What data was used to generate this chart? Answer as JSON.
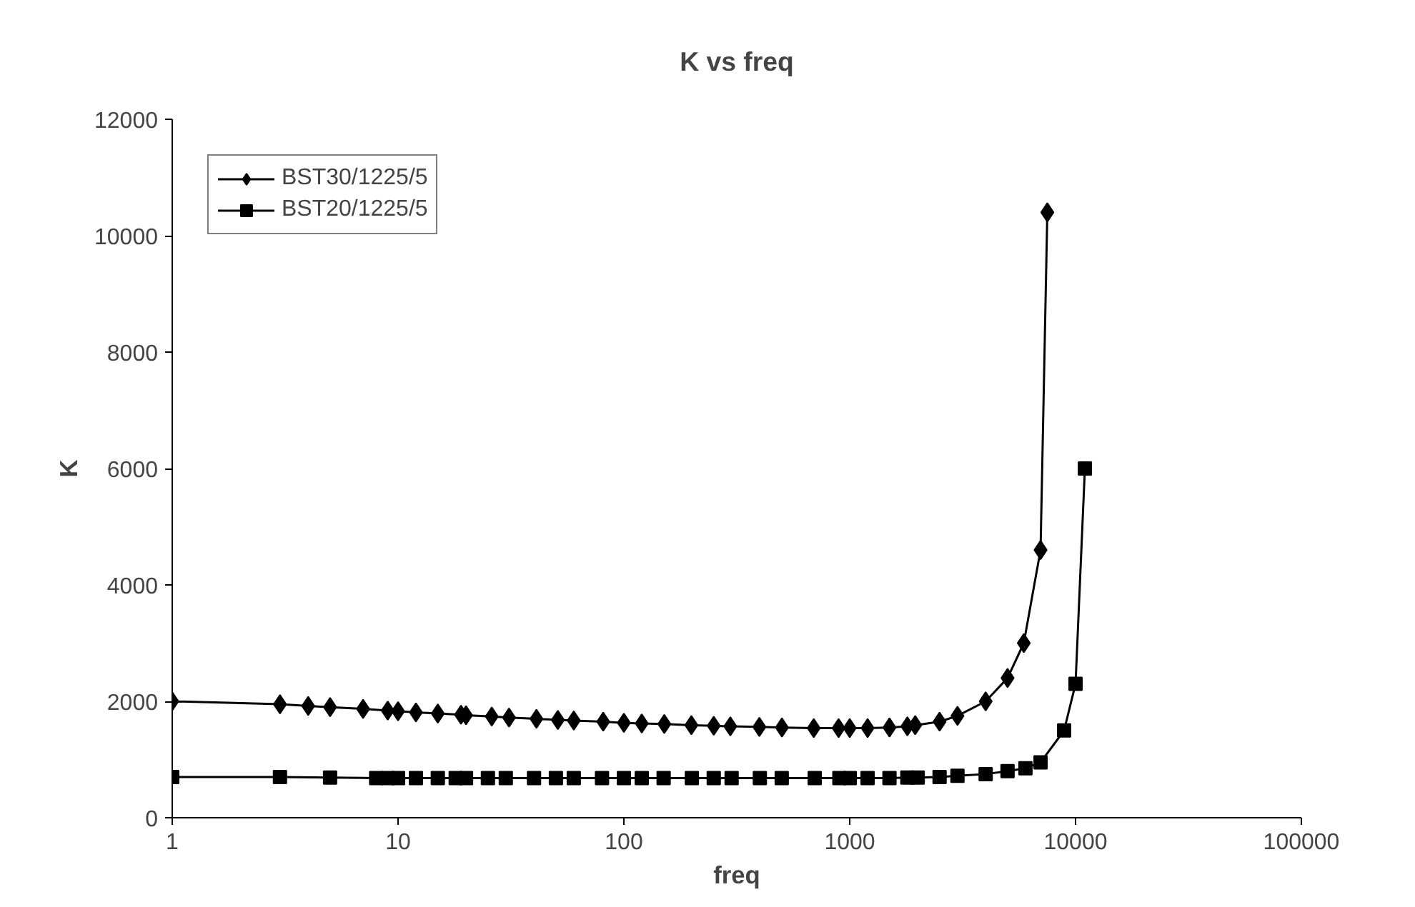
{
  "chart_data": {
    "type": "line",
    "title": "K vs freq",
    "xlabel": "freq",
    "ylabel": "K",
    "log": "x",
    "xlim": [
      1,
      100000
    ],
    "xticks": [
      1,
      10,
      100,
      1000,
      10000,
      100000
    ],
    "ylim": [
      0,
      12000
    ],
    "yticks": [
      0,
      2000,
      4000,
      6000,
      8000,
      10000,
      12000
    ],
    "grid": false,
    "legend": "top left",
    "series": [
      {
        "name": "BST30/1225/5",
        "color": "#000000",
        "marker": "diamond",
        "x": [
          1,
          3,
          4,
          5,
          7,
          9,
          10,
          12,
          15,
          19,
          20,
          26,
          31,
          41,
          51,
          60,
          81,
          100,
          120,
          151,
          199,
          250,
          296,
          398,
          501,
          693,
          893,
          1000,
          1200,
          1500,
          1800,
          1950,
          2500,
          3000,
          4000,
          5000,
          5900,
          7000,
          7500
        ],
        "values": [
          2000,
          1950,
          1920,
          1900,
          1870,
          1840,
          1830,
          1810,
          1790,
          1770,
          1760,
          1740,
          1720,
          1700,
          1680,
          1670,
          1650,
          1630,
          1620,
          1610,
          1590,
          1580,
          1570,
          1560,
          1550,
          1540,
          1540,
          1540,
          1540,
          1550,
          1570,
          1590,
          1650,
          1750,
          2000,
          2400,
          3000,
          4600,
          10400
        ]
      },
      {
        "name": "BST20/1225/5",
        "color": "#000000",
        "marker": "square",
        "x": [
          1,
          3,
          5,
          8,
          9,
          10,
          12,
          15,
          18,
          20,
          25,
          30,
          40,
          50,
          60,
          80,
          100,
          120,
          150,
          200,
          250,
          300,
          400,
          500,
          700,
          900,
          1000,
          1200,
          1500,
          1800,
          2000,
          2500,
          3000,
          4000,
          5000,
          6000,
          7000,
          8900,
          10000,
          11000
        ],
        "values": [
          700,
          700,
          690,
          680,
          680,
          680,
          680,
          680,
          680,
          680,
          680,
          680,
          680,
          680,
          680,
          680,
          680,
          680,
          680,
          680,
          680,
          680,
          680,
          680,
          680,
          680,
          680,
          680,
          680,
          690,
          690,
          700,
          720,
          750,
          800,
          850,
          950,
          1500,
          2300,
          6000
        ]
      }
    ]
  }
}
